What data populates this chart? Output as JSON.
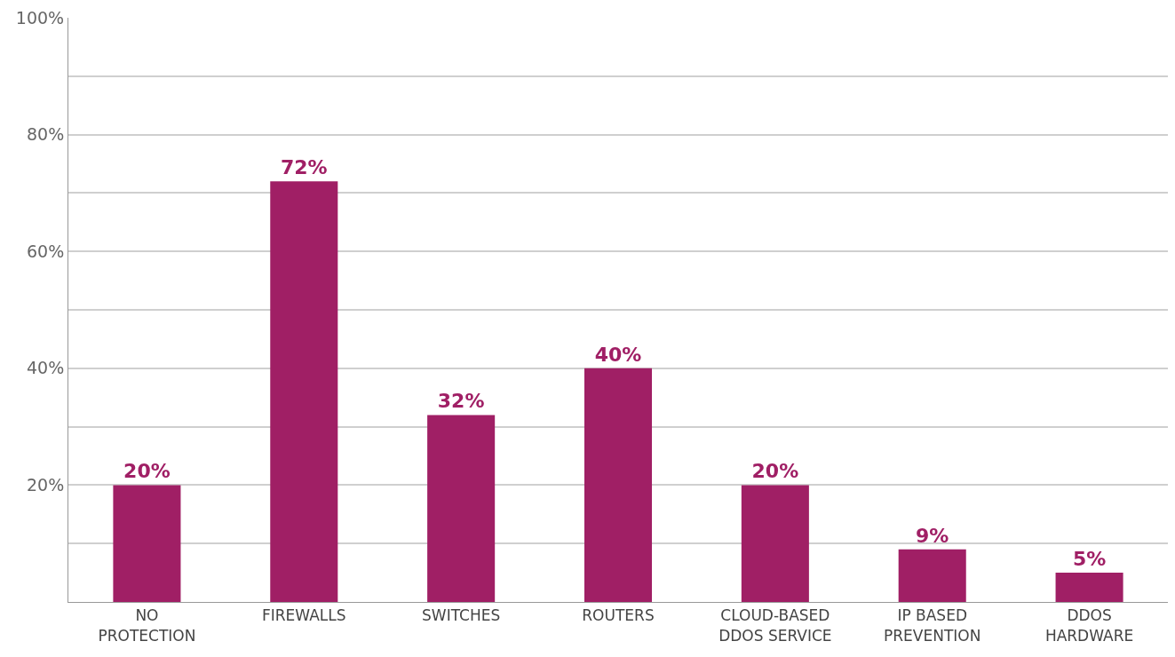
{
  "chart_data": {
    "type": "bar",
    "categories": [
      "NO\nPROTECTION",
      "FIREWALLS",
      "SWITCHES",
      "ROUTERS",
      "CLOUD-BASED\nDDOS SERVICE",
      "IP BASED\nPREVENTION",
      "DDOS\nHARDWARE"
    ],
    "values": [
      20,
      72,
      32,
      40,
      20,
      9,
      5
    ],
    "value_labels": [
      "20%",
      "72%",
      "32%",
      "40%",
      "20%",
      "9%",
      "5%"
    ],
    "color": "#a01f65",
    "ylim": [
      0,
      100
    ],
    "yticks": [
      {
        "value": 0,
        "label": null
      },
      {
        "value": 10,
        "label": null
      },
      "20%",
      {
        "value": 30,
        "label": null
      },
      "40%",
      {
        "value": 50,
        "label": null
      },
      "60%",
      {
        "value": 70,
        "label": null
      },
      "80%",
      {
        "value": 90,
        "label": null
      },
      "100%"
    ],
    "grid": "y",
    "legend": false
  }
}
